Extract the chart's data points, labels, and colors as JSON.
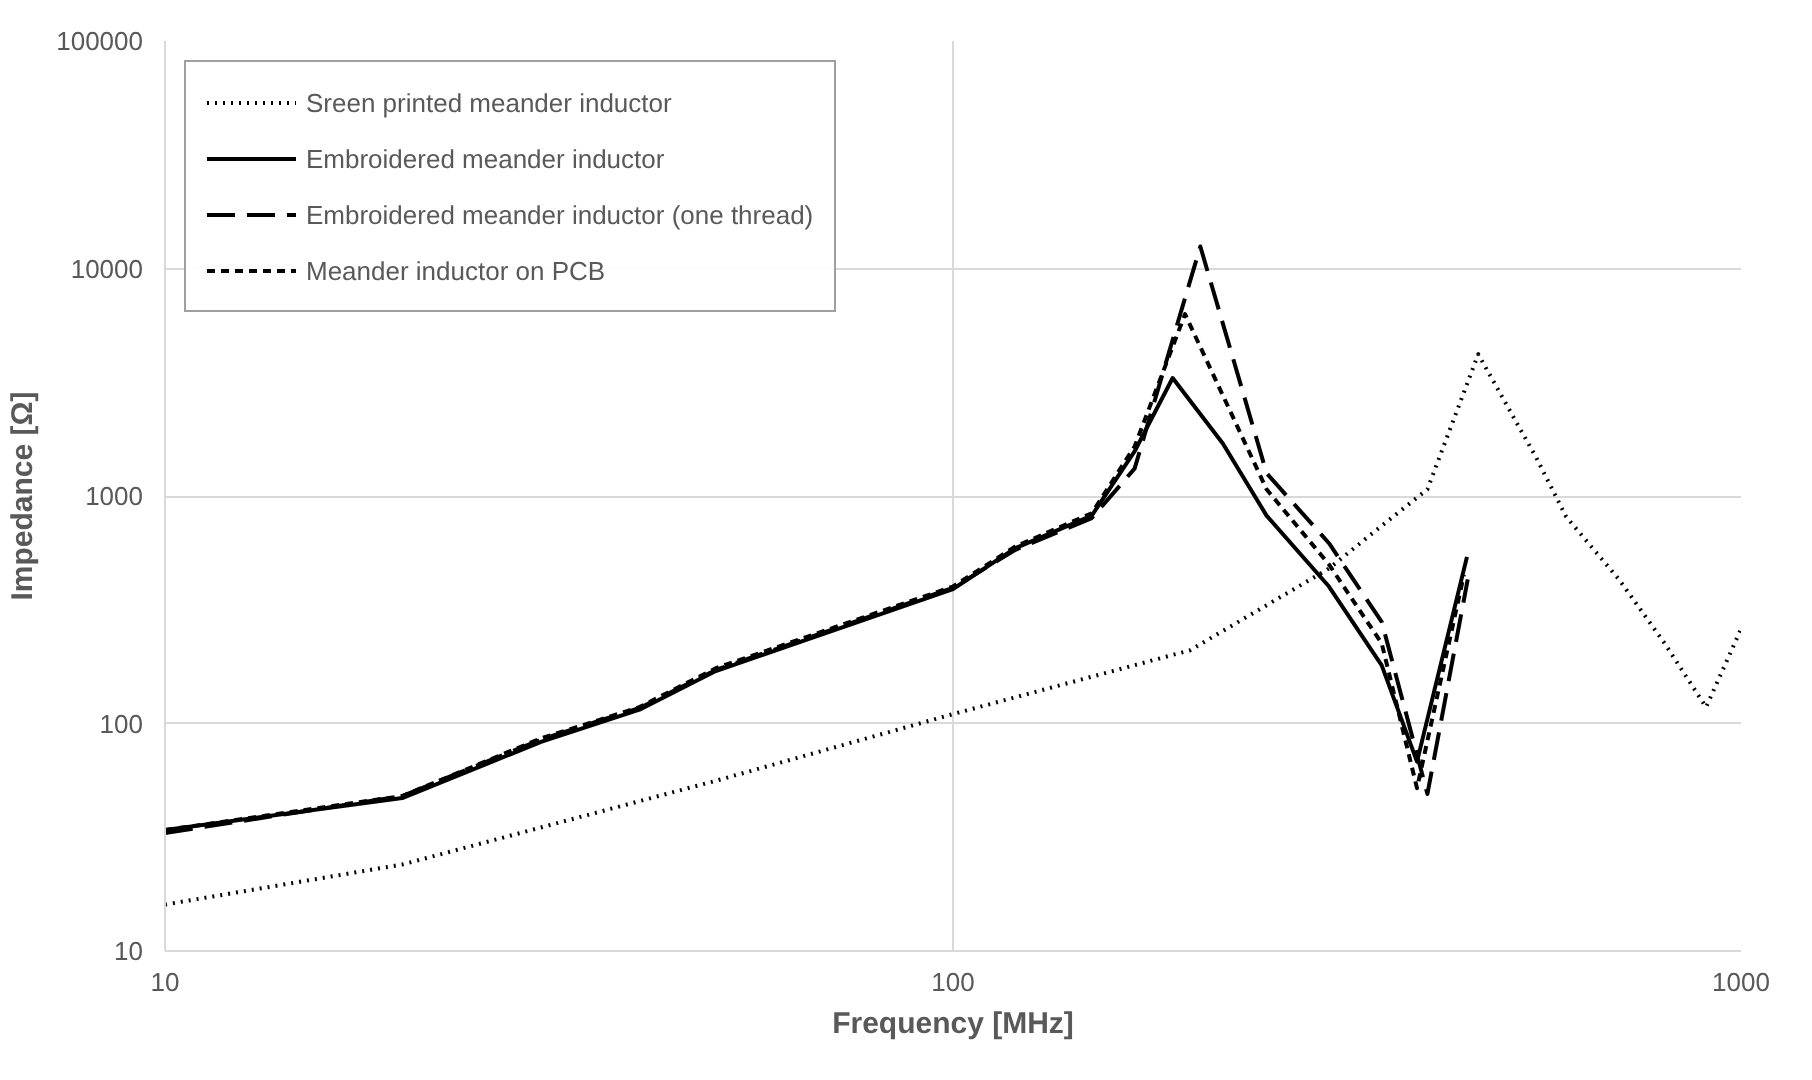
{
  "chart_data": {
    "type": "line",
    "xlabel": "Frequency [MHz]",
    "ylabel": "Impedance [Ω]",
    "log": "xy",
    "grid": true,
    "legend": "top left",
    "xlim": [
      10,
      1000
    ],
    "xticks": [
      10,
      100,
      1000
    ],
    "ylim": [
      10,
      100000
    ],
    "yticks": [
      10,
      100,
      1000,
      10000,
      100000
    ],
    "series": [
      {
        "name": "Sreen printed meander inductor",
        "color": "#000000",
        "line_style": "dotted",
        "x": [
          10,
          20,
          50,
          100,
          200,
          300,
          350,
          400,
          464,
          550,
          600,
          700,
          800,
          903,
          1000
        ],
        "values": [
          16,
          24,
          56,
          110,
          210,
          480,
          740,
          1070,
          4200,
          1470,
          810,
          430,
          225,
          118,
          260
        ]
      },
      {
        "name": "Embroidered meander inductor",
        "color": "#000000",
        "line_style": "solid",
        "x": [
          10,
          20,
          30,
          40,
          50,
          100,
          120,
          150,
          170,
          190,
          220,
          250,
          300,
          350,
          388,
          449
        ],
        "values": [
          34,
          47,
          83,
          115,
          170,
          390,
          590,
          820,
          1570,
          3300,
          1700,
          820,
          400,
          180,
          68,
          540
        ]
      },
      {
        "name": "Embroidered meander inductor (one thread)",
        "color": "#000000",
        "line_style": "longdash",
        "x": [
          10,
          20,
          30,
          40,
          50,
          100,
          120,
          150,
          170,
          206,
          250,
          300,
          350,
          400,
          450
        ],
        "values": [
          33,
          48,
          85,
          117,
          172,
          395,
          580,
          800,
          1320,
          12500,
          1260,
          620,
          280,
          49,
          430
        ]
      },
      {
        "name": "Meander inductor on PCB",
        "color": "#000000",
        "line_style": "dashed",
        "x": [
          10,
          20,
          30,
          40,
          50,
          100,
          120,
          150,
          170,
          197,
          250,
          300,
          350,
          388,
          445
        ],
        "values": [
          34,
          48,
          86,
          118,
          175,
          400,
          600,
          840,
          1650,
          6300,
          1070,
          500,
          225,
          52,
          450
        ]
      }
    ]
  }
}
